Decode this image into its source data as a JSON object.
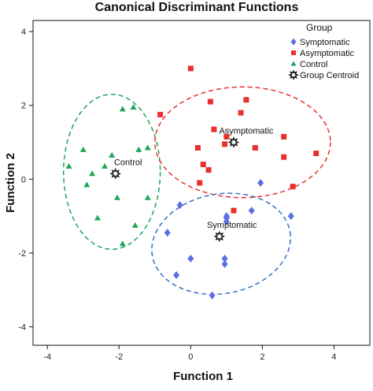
{
  "chart_data": {
    "type": "scatter",
    "title": "Canonical Discriminant Functions",
    "xlabel": "Function 1",
    "ylabel": "Function 2",
    "xlim": [
      -4.4,
      5.0
    ],
    "ylim": [
      -4.5,
      4.3
    ],
    "xticks": [
      -4,
      -2,
      0,
      2,
      4
    ],
    "yticks": [
      -4,
      -2,
      0,
      2,
      4
    ],
    "grid": false,
    "legend": {
      "title": "Group",
      "position": "top-right",
      "entries": [
        "Symptomatic",
        "Asymptomatic",
        "Control",
        "Group Centroid"
      ]
    },
    "series": [
      {
        "name": "Symptomatic",
        "marker": "diamond",
        "color": "#5b6ee6",
        "points": [
          [
            -0.3,
            -0.7
          ],
          [
            -0.65,
            -1.45
          ],
          [
            -0.4,
            -2.6
          ],
          [
            0.0,
            -2.15
          ],
          [
            0.6,
            -3.15
          ],
          [
            0.95,
            -2.15
          ],
          [
            0.95,
            -2.3
          ],
          [
            1.0,
            -1.0
          ],
          [
            1.0,
            -1.15
          ],
          [
            1.7,
            -0.85
          ],
          [
            1.95,
            -0.1
          ],
          [
            2.8,
            -1.0
          ],
          [
            1.0,
            -1.05
          ]
        ]
      },
      {
        "name": "Asymptomatic",
        "marker": "square",
        "color": "#e8312f",
        "points": [
          [
            -0.85,
            1.75
          ],
          [
            0.0,
            3.0
          ],
          [
            0.55,
            2.1
          ],
          [
            1.55,
            2.15
          ],
          [
            1.4,
            1.8
          ],
          [
            0.65,
            1.35
          ],
          [
            1.0,
            1.15
          ],
          [
            0.95,
            0.95
          ],
          [
            0.2,
            0.85
          ],
          [
            0.35,
            0.4
          ],
          [
            0.5,
            0.25
          ],
          [
            0.25,
            -0.1
          ],
          [
            1.8,
            0.85
          ],
          [
            2.6,
            1.15
          ],
          [
            2.6,
            0.6
          ],
          [
            3.5,
            0.7
          ],
          [
            2.85,
            -0.2
          ],
          [
            1.2,
            -0.85
          ]
        ]
      },
      {
        "name": "Control",
        "marker": "triangle",
        "color": "#1fa65a",
        "points": [
          [
            -1.9,
            1.9
          ],
          [
            -1.6,
            1.95
          ],
          [
            -3.4,
            0.35
          ],
          [
            -3.0,
            0.8
          ],
          [
            -2.75,
            0.15
          ],
          [
            -2.9,
            -0.15
          ],
          [
            -2.2,
            0.65
          ],
          [
            -2.4,
            0.35
          ],
          [
            -1.45,
            0.8
          ],
          [
            -1.2,
            0.85
          ],
          [
            -2.05,
            -0.5
          ],
          [
            -2.6,
            -1.05
          ],
          [
            -1.55,
            -1.25
          ],
          [
            -1.9,
            -1.75
          ],
          [
            -1.2,
            -0.5
          ]
        ]
      }
    ],
    "centroids": [
      {
        "name": "Control",
        "label": "Control",
        "x": -2.1,
        "y": 0.15
      },
      {
        "name": "Asymptomatic",
        "label": "Asymptomatic",
        "x": 1.2,
        "y": 1.0
      },
      {
        "name": "Symptomatic",
        "label": "Symptomatic",
        "x": 0.8,
        "y": -1.55
      }
    ],
    "ellipses": [
      {
        "group": "Control",
        "color": "#1fa65a",
        "cx": -2.2,
        "cy": 0.2,
        "rx": 1.35,
        "ry": 2.1,
        "rotation_deg": 0
      },
      {
        "group": "Asymptomatic",
        "color": "#e8312f",
        "cx": 1.45,
        "cy": 1.0,
        "rx": 2.45,
        "ry": 1.5,
        "rotation_deg": 0
      },
      {
        "group": "Symptomatic",
        "color": "#3a70c4",
        "cx": 0.85,
        "cy": -1.75,
        "rx": 1.95,
        "ry": 1.35,
        "rotation_deg": -10
      }
    ]
  }
}
